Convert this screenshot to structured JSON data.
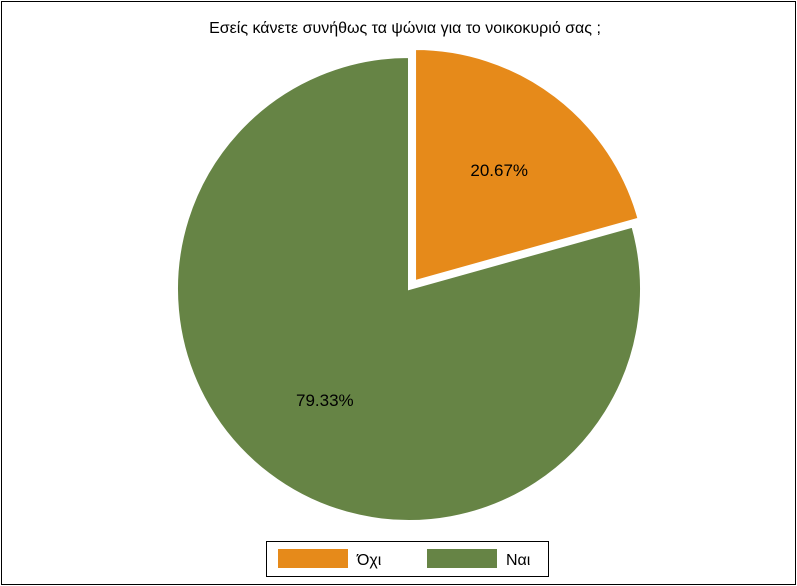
{
  "chart_data": {
    "type": "pie",
    "title": "Εσείς κάνετε συνήθως τα ψώνια για το νοικοκυριό σας ;",
    "slices": [
      {
        "label": "Όχι",
        "value": 20.67,
        "display": "20.67%",
        "color": "#E68A1A",
        "exploded": true
      },
      {
        "label": "Ναι",
        "value": 79.33,
        "display": "79.33%",
        "color": "#668445",
        "exploded": false
      }
    ],
    "legend_position": "bottom"
  }
}
